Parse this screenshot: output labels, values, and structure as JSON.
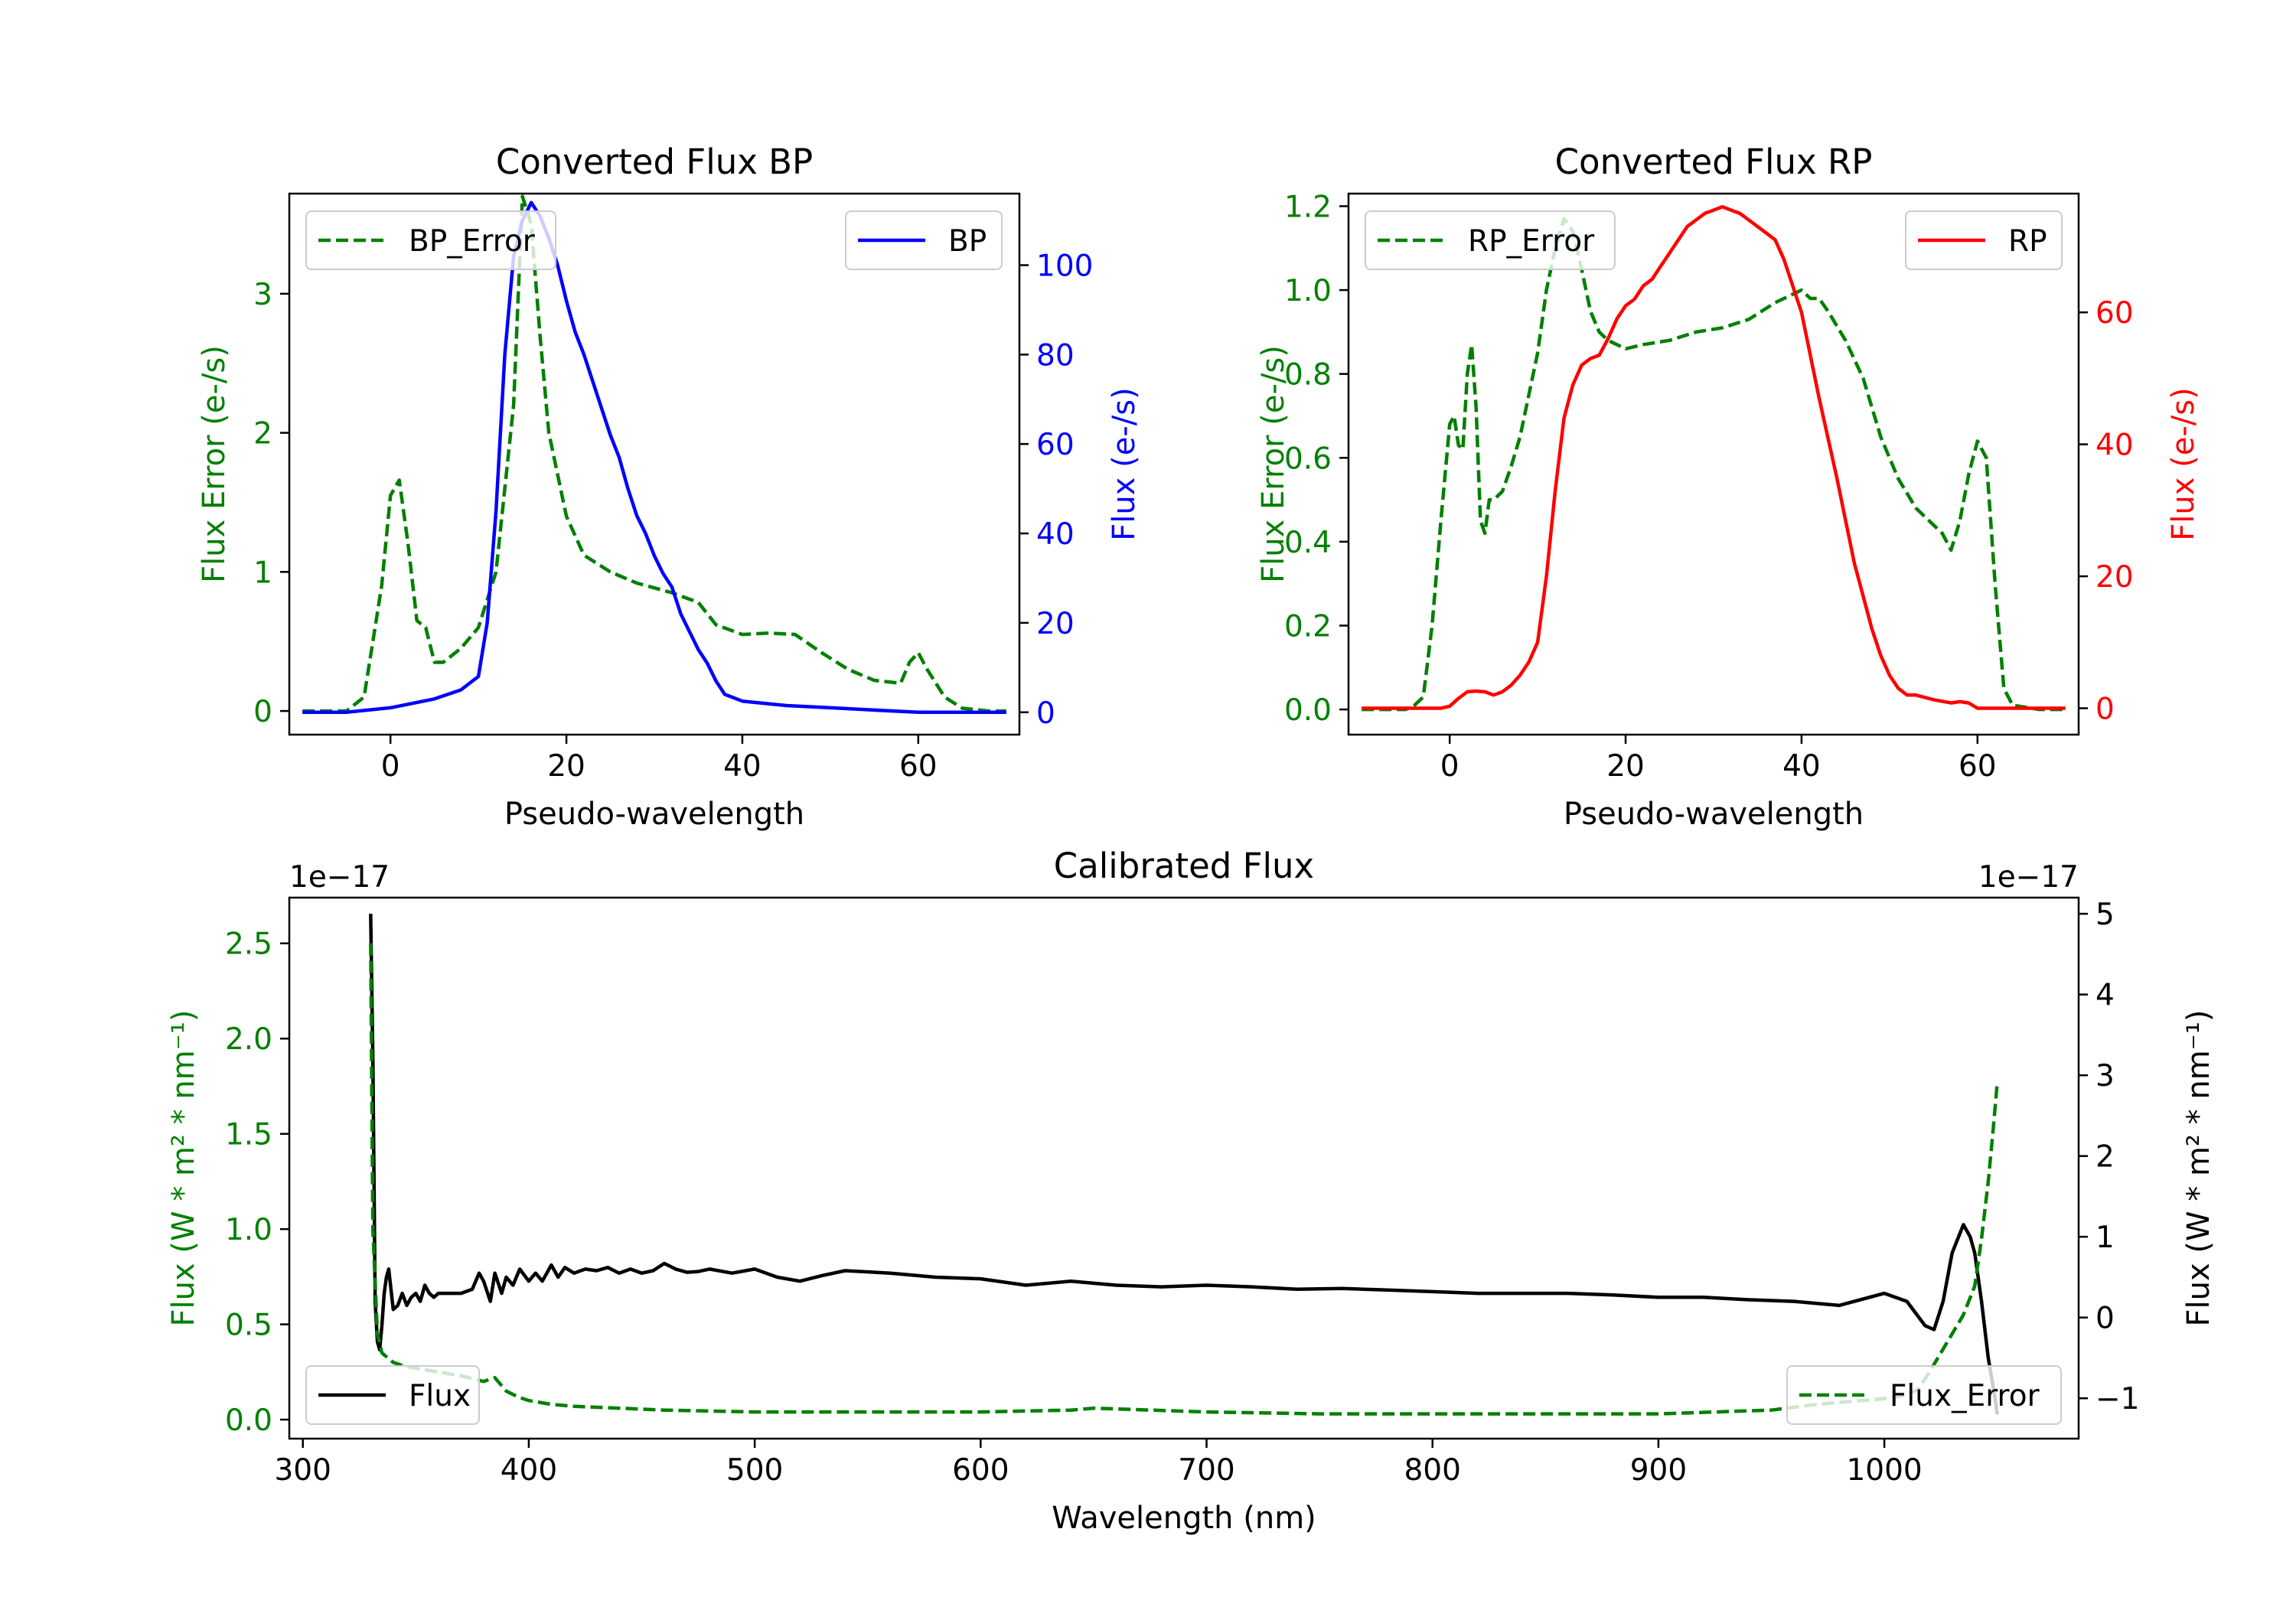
{
  "colors": {
    "green": "#008000",
    "blue": "#0000ff",
    "red": "#ff0000",
    "black": "#000000"
  },
  "chart_data": [
    {
      "type": "line",
      "title": "Converted Flux BP",
      "xlabel": "Pseudo-wavelength",
      "ylabel_left": "Flux Error (e-/s)",
      "ylabel_right": "Flux (e-/s)",
      "xlim": [
        -11.5,
        71.5
      ],
      "ylim_left": [
        -0.17,
        3.72
      ],
      "ylim_right": [
        -5,
        116
      ],
      "xticks": [
        "0",
        "20",
        "40",
        "60"
      ],
      "yticks_left": [
        "0",
        "1",
        "2",
        "3"
      ],
      "yticks_right": [
        "0",
        "20",
        "40",
        "60",
        "80",
        "100"
      ],
      "legend_left": "BP_Error",
      "legend_right": "BP",
      "series": [
        {
          "name": "BP_Error",
          "axis": "left",
          "color": "green",
          "dash": true,
          "x": [
            -10,
            -5,
            -3,
            -1,
            0,
            1,
            2,
            3,
            4,
            5,
            6,
            8,
            10,
            12,
            14,
            15,
            16,
            17,
            18,
            20,
            22,
            25,
            28,
            32,
            35,
            37,
            40,
            43,
            46,
            49,
            52,
            55,
            58,
            59,
            60,
            61,
            63,
            65,
            68,
            70
          ],
          "y": [
            0,
            0,
            0.1,
            0.9,
            1.55,
            1.66,
            1.2,
            0.65,
            0.6,
            0.35,
            0.35,
            0.45,
            0.6,
            1.0,
            2.2,
            3.7,
            3.5,
            2.7,
            2.0,
            1.4,
            1.12,
            1.0,
            0.92,
            0.85,
            0.78,
            0.62,
            0.55,
            0.56,
            0.55,
            0.42,
            0.3,
            0.22,
            0.2,
            0.35,
            0.42,
            0.3,
            0.1,
            0.02,
            0,
            0
          ]
        },
        {
          "name": "BP",
          "axis": "right",
          "color": "blue",
          "dash": false,
          "x": [
            -10,
            -5,
            0,
            5,
            8,
            10,
            11,
            12,
            13,
            14,
            15,
            16,
            17,
            18,
            19,
            20,
            21,
            22,
            23,
            24,
            25,
            26,
            27,
            28,
            29,
            30,
            31,
            32,
            33,
            34,
            35,
            36,
            37,
            38,
            40,
            45,
            50,
            55,
            60,
            65,
            70
          ],
          "y": [
            0,
            0,
            1,
            3,
            5,
            8,
            20,
            45,
            80,
            102,
            110,
            114,
            111,
            106,
            100,
            92,
            85,
            80,
            74,
            68,
            62,
            57,
            50,
            44,
            40,
            35,
            31,
            28,
            22,
            18,
            14,
            11,
            7,
            4,
            2.5,
            1.5,
            1,
            0.5,
            0,
            0,
            0
          ]
        }
      ]
    },
    {
      "type": "line",
      "title": "Converted Flux RP",
      "xlabel": "Pseudo-wavelength",
      "ylabel_left": "Flux Error (e-/s)",
      "ylabel_right": "Flux (e-/s)",
      "xlim": [
        -11.5,
        71.5
      ],
      "ylim_left": [
        -0.06,
        1.23
      ],
      "ylim_right": [
        -4,
        78
      ],
      "xticks": [
        "0",
        "20",
        "40",
        "60"
      ],
      "yticks_left": [
        "0.0",
        "0.2",
        "0.4",
        "0.6",
        "0.8",
        "1.0",
        "1.2"
      ],
      "yticks_right": [
        "0",
        "20",
        "40",
        "60"
      ],
      "legend_left": "RP_Error",
      "legend_right": "RP",
      "series": [
        {
          "name": "RP_Error",
          "axis": "left",
          "color": "green",
          "dash": true,
          "x": [
            -10,
            -5,
            -4,
            -3,
            -2,
            -1,
            0,
            0.5,
            1,
            1.5,
            2,
            2.5,
            3,
            3.5,
            4,
            4.5,
            5,
            6,
            7,
            8,
            9,
            10,
            11,
            12,
            13,
            14,
            15,
            16,
            17,
            18,
            19,
            20,
            22,
            25,
            28,
            31,
            34,
            37,
            39,
            40,
            41,
            42,
            43,
            45,
            47,
            49,
            51,
            53,
            55,
            56,
            57,
            58,
            59,
            60,
            61,
            62,
            63,
            64,
            67,
            70
          ],
          "y": [
            0,
            0,
            0.01,
            0.03,
            0.2,
            0.45,
            0.68,
            0.7,
            0.63,
            0.62,
            0.8,
            0.87,
            0.72,
            0.45,
            0.42,
            0.5,
            0.5,
            0.52,
            0.58,
            0.65,
            0.75,
            0.85,
            1.0,
            1.1,
            1.17,
            1.14,
            1.05,
            0.95,
            0.9,
            0.88,
            0.87,
            0.86,
            0.87,
            0.88,
            0.9,
            0.91,
            0.93,
            0.97,
            0.99,
            1.0,
            0.98,
            0.98,
            0.95,
            0.88,
            0.79,
            0.65,
            0.55,
            0.48,
            0.44,
            0.42,
            0.38,
            0.45,
            0.56,
            0.64,
            0.6,
            0.3,
            0.05,
            0.01,
            0,
            0
          ]
        },
        {
          "name": "RP",
          "axis": "right",
          "color": "red",
          "dash": false,
          "x": [
            -10,
            -5,
            -1,
            0,
            1,
            2,
            3,
            4,
            5,
            6,
            7,
            8,
            9,
            10,
            11,
            12,
            13,
            14,
            15,
            16,
            17,
            18,
            19,
            20,
            21,
            22,
            23,
            24,
            25,
            26,
            27,
            28,
            29,
            30,
            31,
            32,
            33,
            34,
            35,
            36,
            37,
            38,
            40,
            42,
            44,
            46,
            48,
            49,
            50,
            51,
            52,
            53,
            55,
            57,
            58,
            59,
            60,
            65,
            70
          ],
          "y": [
            0,
            0,
            0,
            0.3,
            1.5,
            2.5,
            2.6,
            2.5,
            2,
            2.5,
            3.5,
            5,
            7,
            10,
            20,
            33,
            44,
            49,
            52,
            53,
            53.5,
            56,
            59,
            61,
            62,
            64,
            65,
            67,
            69,
            71,
            73,
            74,
            75,
            75.5,
            76,
            75.5,
            75,
            74,
            73,
            72,
            71,
            68,
            60,
            47,
            35,
            22,
            12,
            8,
            5,
            3,
            2,
            2,
            1.3,
            0.8,
            1,
            0.8,
            0,
            0,
            0
          ]
        }
      ]
    },
    {
      "type": "line",
      "title": "Calibrated Flux",
      "xlabel": "Wavelength (nm)",
      "ylabel_left": "Flux (W * m² * nm⁻¹)",
      "ylabel_right": "Flux (W * m² * nm⁻¹)",
      "offset_left": "1e−17",
      "offset_right": "1e−17",
      "xlim": [
        294,
        1086
      ],
      "ylim_left": [
        -0.1,
        2.74
      ],
      "ylim_right": [
        -1.5,
        5.2
      ],
      "xticks": [
        "300",
        "400",
        "500",
        "600",
        "700",
        "800",
        "900",
        "1000"
      ],
      "yticks_left": [
        "0.0",
        "0.5",
        "1.0",
        "1.5",
        "2.0",
        "2.5"
      ],
      "yticks_right": [
        "−1",
        "0",
        "1",
        "2",
        "3",
        "4",
        "5"
      ],
      "legend_left": "Flux",
      "legend_right": "Flux_Error",
      "series": [
        {
          "name": "Flux",
          "axis": "right",
          "color": "black",
          "dash": false,
          "x": [
            330,
            331,
            332,
            333,
            334,
            335,
            336,
            337,
            338,
            340,
            342,
            344,
            346,
            348,
            350,
            352,
            354,
            356,
            358,
            360,
            365,
            370,
            375,
            378,
            380,
            383,
            385,
            388,
            390,
            393,
            396,
            400,
            403,
            406,
            410,
            413,
            416,
            420,
            425,
            430,
            435,
            440,
            445,
            450,
            455,
            460,
            465,
            470,
            475,
            480,
            490,
            500,
            510,
            520,
            530,
            540,
            560,
            580,
            600,
            620,
            640,
            660,
            680,
            700,
            720,
            740,
            760,
            780,
            800,
            820,
            840,
            860,
            880,
            900,
            920,
            940,
            960,
            980,
            1000,
            1010,
            1018,
            1022,
            1026,
            1030,
            1035,
            1038,
            1040,
            1043,
            1046,
            1049,
            1050
          ],
          "y": [
            5.0,
            3.2,
            0.2,
            -0.3,
            -0.4,
            -0.1,
            0.3,
            0.5,
            0.6,
            0.1,
            0.15,
            0.3,
            0.15,
            0.25,
            0.3,
            0.2,
            0.4,
            0.3,
            0.25,
            0.3,
            0.3,
            0.3,
            0.35,
            0.55,
            0.45,
            0.2,
            0.55,
            0.3,
            0.5,
            0.4,
            0.6,
            0.45,
            0.55,
            0.45,
            0.65,
            0.5,
            0.62,
            0.55,
            0.6,
            0.58,
            0.62,
            0.55,
            0.6,
            0.55,
            0.58,
            0.67,
            0.6,
            0.56,
            0.57,
            0.6,
            0.55,
            0.6,
            0.5,
            0.45,
            0.52,
            0.58,
            0.55,
            0.5,
            0.48,
            0.4,
            0.45,
            0.4,
            0.38,
            0.4,
            0.38,
            0.35,
            0.36,
            0.34,
            0.32,
            0.3,
            0.3,
            0.3,
            0.28,
            0.25,
            0.25,
            0.22,
            0.2,
            0.15,
            0.3,
            0.2,
            -0.1,
            -0.15,
            0.2,
            0.8,
            1.15,
            1.0,
            0.8,
            0.2,
            -0.5,
            -1.0,
            -1.2
          ]
        },
        {
          "name": "Flux_Error",
          "axis": "left",
          "color": "green",
          "dash": true,
          "x": [
            330,
            331,
            333,
            335,
            340,
            345,
            350,
            360,
            370,
            380,
            385,
            390,
            395,
            400,
            410,
            420,
            440,
            460,
            500,
            550,
            600,
            640,
            650,
            700,
            750,
            800,
            850,
            900,
            950,
            970,
            990,
            1000,
            1010,
            1015,
            1020,
            1025,
            1030,
            1035,
            1040,
            1043,
            1046,
            1048,
            1050
          ],
          "y": [
            2.5,
            1.0,
            0.45,
            0.35,
            0.3,
            0.28,
            0.27,
            0.25,
            0.23,
            0.2,
            0.22,
            0.15,
            0.12,
            0.1,
            0.08,
            0.07,
            0.06,
            0.05,
            0.04,
            0.04,
            0.04,
            0.05,
            0.06,
            0.04,
            0.03,
            0.03,
            0.03,
            0.03,
            0.05,
            0.08,
            0.1,
            0.11,
            0.13,
            0.16,
            0.25,
            0.35,
            0.45,
            0.55,
            0.7,
            0.95,
            1.25,
            1.5,
            1.77
          ]
        }
      ]
    }
  ]
}
